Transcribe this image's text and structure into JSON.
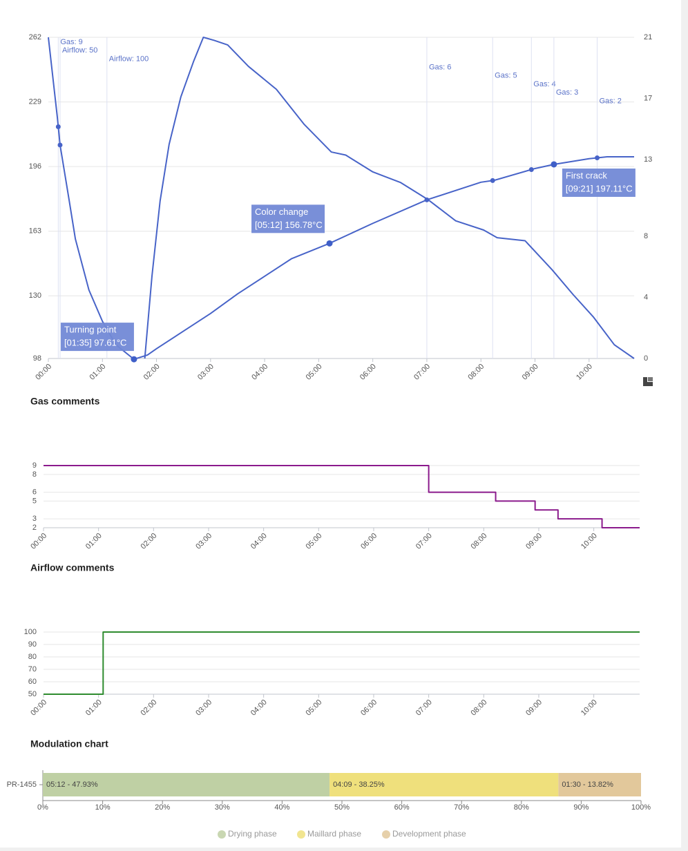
{
  "chart_data": [
    {
      "type": "line",
      "xlim": [
        0,
        650
      ],
      "xticks": [
        {
          "value": 0,
          "label": "00:00"
        },
        {
          "value": 60,
          "label": "01:00"
        },
        {
          "value": 120,
          "label": "02:00"
        },
        {
          "value": 180,
          "label": "03:00"
        },
        {
          "value": 240,
          "label": "04:00"
        },
        {
          "value": 300,
          "label": "05:00"
        },
        {
          "value": 360,
          "label": "06:00"
        },
        {
          "value": 420,
          "label": "07:00"
        },
        {
          "value": 480,
          "label": "08:00"
        },
        {
          "value": 540,
          "label": "09:00"
        },
        {
          "value": 600,
          "label": "10:00"
        }
      ],
      "ylim": [
        98,
        262
      ],
      "yticks": [
        98,
        130,
        163,
        196,
        229,
        262
      ],
      "y2lim": [
        0,
        21
      ],
      "y2ticks": [
        0,
        4,
        8,
        13,
        17,
        21
      ],
      "grid": true,
      "series": [
        {
          "color": "#4763c8",
          "x": [
            0,
            10,
            13,
            23,
            30,
            45,
            60,
            75,
            95,
            110,
            120,
            150,
            180,
            210,
            240,
            270,
            312,
            360,
            420,
            480,
            495,
            540,
            561,
            600,
            620,
            650
          ],
          "values": [
            262,
            221,
            207,
            179,
            159,
            133,
            117,
            105,
            97.61,
            99.8,
            103,
            112,
            121,
            131,
            140,
            149,
            156.78,
            167,
            179,
            188,
            189,
            195,
            197.11,
            200,
            201,
            201
          ]
        },
        {
          "color": "#4763c8",
          "axis": "y2",
          "x": [
            107,
            115,
            124,
            134,
            147,
            161,
            172,
            184,
            199,
            222,
            253,
            284,
            314,
            330,
            360,
            391,
            421,
            452,
            483,
            498,
            529,
            559,
            582,
            605,
            628,
            650
          ],
          "values": [
            0,
            5.4,
            10.3,
            14,
            17.1,
            19.4,
            21,
            20.8,
            20.5,
            19.1,
            17.6,
            15.3,
            13.5,
            13.3,
            12.2,
            11.5,
            10.4,
            9,
            8.4,
            7.9,
            7.7,
            5.8,
            4.2,
            2.7,
            0.9,
            0
          ]
        }
      ],
      "annotations": [
        {
          "text": "Gas: 9",
          "x": 11
        },
        {
          "text": "Airflow: 50",
          "x": 13
        },
        {
          "text": "Airflow: 100",
          "x": 65
        },
        {
          "text": "Gas: 6",
          "x": 420
        },
        {
          "text": "Gas: 5",
          "x": 493
        },
        {
          "text": "Gas: 4",
          "x": 536
        },
        {
          "text": "Gas: 3",
          "x": 561
        },
        {
          "text": "Gas: 2",
          "x": 609
        }
      ],
      "markers": [
        {
          "label": "Turning point",
          "detail": "[01:35] 97.61°C",
          "x": 95,
          "y": 97.61
        },
        {
          "label": "Color change",
          "detail": "[05:12] 156.78°C",
          "x": 312,
          "y": 156.78
        },
        {
          "label": "First crack",
          "detail": "[09:21] 197.11°C",
          "x": 561,
          "y": 197.11
        }
      ]
    },
    {
      "type": "line",
      "title": "Gas comments",
      "step": "after",
      "xlim": [
        0,
        650
      ],
      "xticks": [
        {
          "value": 0,
          "label": "00:00"
        },
        {
          "value": 60,
          "label": "01:00"
        },
        {
          "value": 120,
          "label": "02:00"
        },
        {
          "value": 180,
          "label": "03:00"
        },
        {
          "value": 240,
          "label": "04:00"
        },
        {
          "value": 300,
          "label": "05:00"
        },
        {
          "value": 360,
          "label": "06:00"
        },
        {
          "value": 420,
          "label": "07:00"
        },
        {
          "value": 480,
          "label": "08:00"
        },
        {
          "value": 540,
          "label": "09:00"
        },
        {
          "value": 600,
          "label": "10:00"
        }
      ],
      "ylim": [
        2,
        9
      ],
      "yticks": [
        2,
        3,
        5,
        6,
        8,
        9
      ],
      "grid": true,
      "series": [
        {
          "color": "#8b1a8c",
          "x": [
            0,
            420,
            493,
            536,
            561,
            609,
            650
          ],
          "values": [
            9,
            6,
            5,
            4,
            3,
            2,
            2
          ]
        }
      ]
    },
    {
      "type": "line",
      "title": "Airflow comments",
      "step": "after",
      "xlim": [
        0,
        650
      ],
      "xticks": [
        {
          "value": 0,
          "label": "00:00"
        },
        {
          "value": 60,
          "label": "01:00"
        },
        {
          "value": 120,
          "label": "02:00"
        },
        {
          "value": 180,
          "label": "03:00"
        },
        {
          "value": 240,
          "label": "04:00"
        },
        {
          "value": 300,
          "label": "05:00"
        },
        {
          "value": 360,
          "label": "06:00"
        },
        {
          "value": 420,
          "label": "07:00"
        },
        {
          "value": 480,
          "label": "08:00"
        },
        {
          "value": 540,
          "label": "09:00"
        },
        {
          "value": 600,
          "label": "10:00"
        }
      ],
      "ylim": [
        50,
        100
      ],
      "yticks": [
        50,
        60,
        70,
        80,
        90,
        100
      ],
      "grid": true,
      "series": [
        {
          "color": "#2e8b2e",
          "x": [
            0,
            65,
            650
          ],
          "values": [
            50,
            100,
            100
          ]
        }
      ]
    },
    {
      "type": "bar",
      "title": "Modulation chart",
      "orientation": "horizontal",
      "stacked": true,
      "categories": [
        "PR-1455"
      ],
      "xlim": [
        0,
        100
      ],
      "xticks": [
        {
          "value": 0,
          "label": "0%"
        },
        {
          "value": 10,
          "label": "10%"
        },
        {
          "value": 20,
          "label": "20%"
        },
        {
          "value": 30,
          "label": "30%"
        },
        {
          "value": 40,
          "label": "40%"
        },
        {
          "value": 50,
          "label": "50%"
        },
        {
          "value": 60,
          "label": "60%"
        },
        {
          "value": 70,
          "label": "70%"
        },
        {
          "value": 80,
          "label": "80%"
        },
        {
          "value": 90,
          "label": "90%"
        },
        {
          "value": 100,
          "label": "100%"
        }
      ],
      "series": [
        {
          "name": "Drying phase",
          "color": "#bfd0a4",
          "values": [
            47.93
          ],
          "value_labels": [
            "05:12 - 47.93%"
          ]
        },
        {
          "name": "Maillard phase",
          "color": "#efe07c",
          "values": [
            38.25
          ],
          "value_labels": [
            "04:09 - 38.25%"
          ]
        },
        {
          "name": "Development phase",
          "color": "#e2c89b",
          "values": [
            13.82
          ],
          "value_labels": [
            "01:30 - 13.82%"
          ]
        }
      ]
    }
  ]
}
